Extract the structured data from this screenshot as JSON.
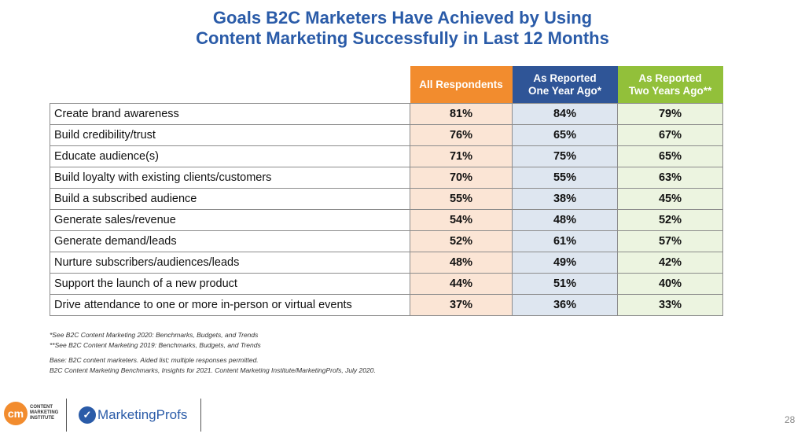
{
  "title": {
    "line1": "Goals B2C Marketers Have Achieved by Using",
    "line2": "Content Marketing Successfully in Last 12 Months"
  },
  "table": {
    "headers": {
      "c1": "All Respondents",
      "c2_line1": "As Reported",
      "c2_line2": "One Year Ago*",
      "c3_line1": "As Reported",
      "c3_line2": "Two Years Ago**"
    },
    "rows": [
      {
        "label": "Create brand awareness",
        "all": "81%",
        "one": "84%",
        "two": "79%"
      },
      {
        "label": "Build credibility/trust",
        "all": "76%",
        "one": "65%",
        "two": "67%"
      },
      {
        "label": "Educate audience(s)",
        "all": "71%",
        "one": "75%",
        "two": "65%"
      },
      {
        "label": "Build loyalty with existing clients/customers",
        "all": "70%",
        "one": "55%",
        "two": "63%"
      },
      {
        "label": "Build a subscribed audience",
        "all": "55%",
        "one": "38%",
        "two": "45%"
      },
      {
        "label": "Generate sales/revenue",
        "all": "54%",
        "one": "48%",
        "two": "52%"
      },
      {
        "label": "Generate demand/leads",
        "all": "52%",
        "one": "61%",
        "two": "57%"
      },
      {
        "label": "Nurture subscribers/audiences/leads",
        "all": "48%",
        "one": "49%",
        "two": "42%"
      },
      {
        "label": "Support the launch of a new product",
        "all": "44%",
        "one": "51%",
        "two": "40%"
      },
      {
        "label": "Drive attendance to one or more in-person or virtual events",
        "all": "37%",
        "one": "36%",
        "two": "33%"
      }
    ]
  },
  "notes": {
    "n1": "*See B2C Content Marketing 2020: Benchmarks, Budgets, and Trends",
    "n2": "**See B2C Content Marketing 2019: Benchmarks, Budgets, and Trends",
    "n3": "Base: B2C content marketers. Aided list; multiple responses permitted.",
    "n4": "B2C Content Marketing Benchmarks, Insights for 2021. Content Marketing Institute/MarketingProfs, July 2020."
  },
  "footer": {
    "cmi_mark": "cm",
    "cmi_line1": "CONTENT",
    "cmi_line2": "MARKETING",
    "cmi_line3": "INSTITUTE",
    "mp_name": "MarketingProfs",
    "page_number": "28"
  },
  "colors": {
    "title": "#2a5ba8",
    "all_header": "#f28c2e",
    "one_year_header": "#2f5597",
    "two_year_header": "#92c03a"
  }
}
